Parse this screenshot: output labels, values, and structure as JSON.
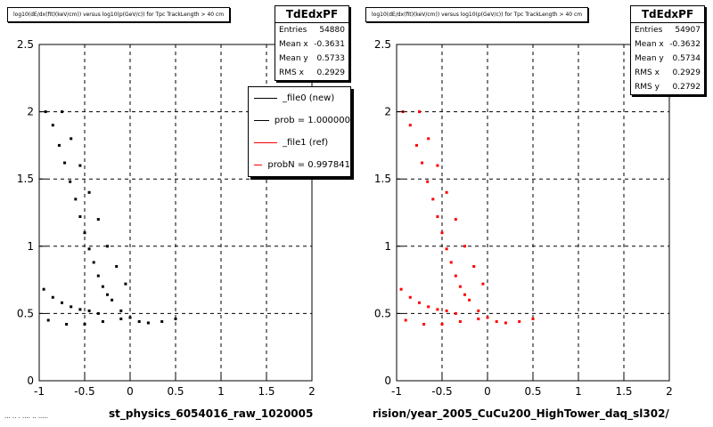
{
  "colors": {
    "ref_accent": "#ff0000",
    "new_accent": "#000000"
  },
  "left_panel": {
    "title": "log10(dE/dx(fit)(keV/cm)) versus log10(p(GeV/c)) for Tpc TrackLength > 40 cm",
    "xlabel": "st_physics_6054016_raw_1020005",
    "stats": {
      "name": "TdEdxPF",
      "rows": [
        {
          "label": "Entries",
          "value": "54880"
        },
        {
          "label": "Mean x",
          "value": "-0.3631"
        },
        {
          "label": "Mean y",
          "value": "0.5733"
        },
        {
          "label": "RMS x",
          "value": "0.2929"
        }
      ]
    },
    "legend": [
      {
        "label": "_file0 (new)",
        "color": "#000000"
      },
      {
        "label": "prob = 1.000000",
        "color": "#000000"
      },
      {
        "label": "_file1 (ref)",
        "color": "#ff0000"
      },
      {
        "label": "probN = 0.997841",
        "color": "#ff0000"
      }
    ]
  },
  "right_panel": {
    "title": "log10(dE/dx(fit)(keV/cm)) versus log10(p(GeV/c)) for Tpc TrackLength > 40 cm",
    "xlabel": "rision/year_2005_CuCu200_HighTower_daq_sl302/",
    "stats": {
      "name": "TdEdxPF",
      "rows": [
        {
          "label": "Entries",
          "value": "54907"
        },
        {
          "label": "Mean x",
          "value": "-0.3632"
        },
        {
          "label": "Mean y",
          "value": "0.5734"
        },
        {
          "label": "RMS x",
          "value": "0.2929"
        },
        {
          "label": "RMS y",
          "value": "0.2792"
        }
      ]
    }
  },
  "bottom_left_fragment": "··· ·· · ···· ·· ·····",
  "chart_data": [
    {
      "type": "scatter",
      "title": "log10(dE/dx(fit)(keV/cm)) versus log10(p(GeV/c)) for Tpc TrackLength > 40 cm",
      "xlabel": "st_physics_6054016_raw_1020005",
      "ylabel": "",
      "xlim": [
        -1,
        2
      ],
      "ylim": [
        0,
        2.5
      ],
      "xticks": [
        "-1",
        "-0.5",
        "0",
        "0.5",
        "1",
        "1.5",
        "2"
      ],
      "yticks": [
        "0",
        "0.5",
        "1",
        "1.5",
        "2",
        "2.5"
      ],
      "grid": true,
      "color": "#000000",
      "series": [
        {
          "name": "_file0 (new)",
          "points": [
            [
              -0.93,
              2.0
            ],
            [
              -0.85,
              1.9
            ],
            [
              -0.78,
              1.75
            ],
            [
              -0.72,
              1.62
            ],
            [
              -0.66,
              1.48
            ],
            [
              -0.6,
              1.35
            ],
            [
              -0.55,
              1.22
            ],
            [
              -0.5,
              1.1
            ],
            [
              -0.45,
              0.98
            ],
            [
              -0.4,
              0.88
            ],
            [
              -0.35,
              0.78
            ],
            [
              -0.3,
              0.7
            ],
            [
              -0.25,
              0.64
            ],
            [
              -0.2,
              0.6
            ],
            [
              -0.1,
              0.52
            ],
            [
              0.0,
              0.47
            ],
            [
              0.1,
              0.44
            ],
            [
              0.2,
              0.43
            ],
            [
              0.35,
              0.44
            ],
            [
              0.5,
              0.46
            ],
            [
              -0.75,
              2.0
            ],
            [
              -0.65,
              1.8
            ],
            [
              -0.55,
              1.6
            ],
            [
              -0.45,
              1.4
            ],
            [
              -0.35,
              1.2
            ],
            [
              -0.25,
              1.0
            ],
            [
              -0.15,
              0.85
            ],
            [
              -0.05,
              0.72
            ],
            [
              -0.95,
              0.68
            ],
            [
              -0.85,
              0.62
            ],
            [
              -0.75,
              0.58
            ],
            [
              -0.65,
              0.55
            ],
            [
              -0.55,
              0.53
            ],
            [
              -0.45,
              0.52
            ],
            [
              -0.35,
              0.5
            ],
            [
              -0.9,
              0.45
            ],
            [
              -0.7,
              0.42
            ],
            [
              -0.5,
              0.42
            ],
            [
              -0.3,
              0.44
            ],
            [
              -0.1,
              0.46
            ]
          ]
        }
      ]
    },
    {
      "type": "scatter",
      "title": "log10(dE/dx(fit)(keV/cm)) versus log10(p(GeV/c)) for Tpc TrackLength > 40 cm",
      "xlabel": "rision/year_2005_CuCu200_HighTower_daq_sl302/",
      "ylabel": "",
      "xlim": [
        -1,
        2
      ],
      "ylim": [
        0,
        2.5
      ],
      "xticks": [
        "-1",
        "-0.5",
        "0",
        "0.5",
        "1",
        "1.5",
        "2"
      ],
      "yticks": [
        "0",
        "0.5",
        "1",
        "1.5",
        "2",
        "2.5"
      ],
      "grid": true,
      "color": "#ff0000",
      "series": [
        {
          "name": "_file1 (ref)",
          "points": [
            [
              -0.93,
              2.0
            ],
            [
              -0.85,
              1.9
            ],
            [
              -0.78,
              1.75
            ],
            [
              -0.72,
              1.62
            ],
            [
              -0.66,
              1.48
            ],
            [
              -0.6,
              1.35
            ],
            [
              -0.55,
              1.22
            ],
            [
              -0.5,
              1.1
            ],
            [
              -0.45,
              0.98
            ],
            [
              -0.4,
              0.88
            ],
            [
              -0.35,
              0.78
            ],
            [
              -0.3,
              0.7
            ],
            [
              -0.25,
              0.64
            ],
            [
              -0.2,
              0.6
            ],
            [
              -0.1,
              0.52
            ],
            [
              0.0,
              0.47
            ],
            [
              0.1,
              0.44
            ],
            [
              0.2,
              0.43
            ],
            [
              0.35,
              0.44
            ],
            [
              0.5,
              0.46
            ],
            [
              -0.75,
              2.0
            ],
            [
              -0.65,
              1.8
            ],
            [
              -0.55,
              1.6
            ],
            [
              -0.45,
              1.4
            ],
            [
              -0.35,
              1.2
            ],
            [
              -0.25,
              1.0
            ],
            [
              -0.15,
              0.85
            ],
            [
              -0.05,
              0.72
            ],
            [
              -0.95,
              0.68
            ],
            [
              -0.85,
              0.62
            ],
            [
              -0.75,
              0.58
            ],
            [
              -0.65,
              0.55
            ],
            [
              -0.55,
              0.53
            ],
            [
              -0.45,
              0.52
            ],
            [
              -0.35,
              0.5
            ],
            [
              -0.9,
              0.45
            ],
            [
              -0.7,
              0.42
            ],
            [
              -0.5,
              0.42
            ],
            [
              -0.3,
              0.44
            ],
            [
              -0.1,
              0.46
            ]
          ]
        }
      ]
    }
  ]
}
